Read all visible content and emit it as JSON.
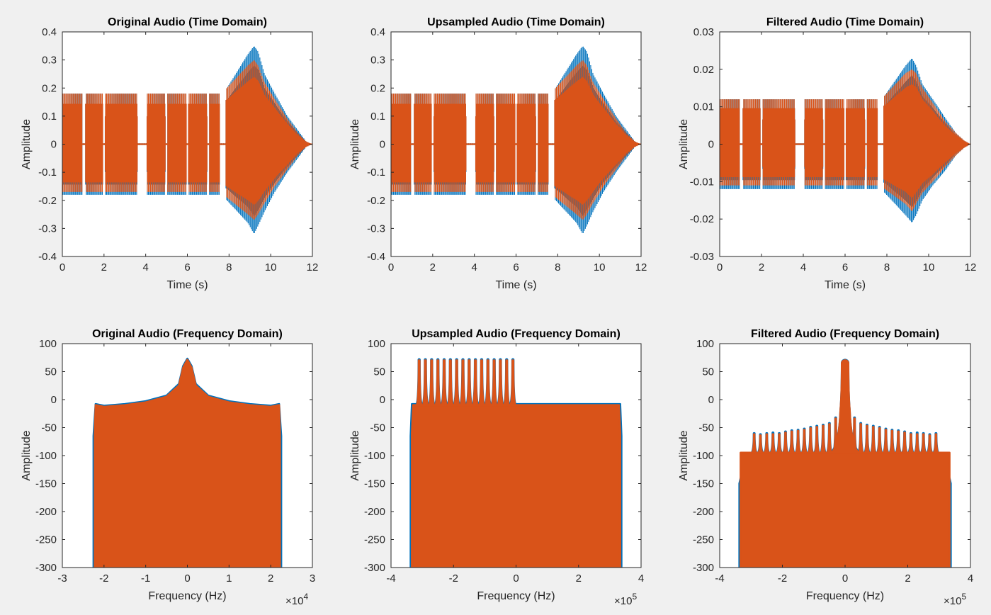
{
  "window": {
    "background": "#f0f0f0"
  },
  "colors": {
    "series1": "#0072bd",
    "series2": "#d95319",
    "axes": "#262626",
    "plot_bg": "#ffffff"
  },
  "chart_data": [
    {
      "id": "p1",
      "type": "line",
      "title": "Original Audio (Time Domain)",
      "xlabel": "Time (s)",
      "ylabel": "Amplitude",
      "xlim": [
        0,
        12
      ],
      "ylim": [
        -0.4,
        0.4
      ],
      "xticks": [
        0,
        2,
        4,
        6,
        8,
        10,
        12
      ],
      "xtick_labels": [
        "0",
        "2",
        "4",
        "6",
        "8",
        "10",
        "12"
      ],
      "yticks": [
        -0.4,
        -0.3,
        -0.2,
        -0.1,
        0,
        0.1,
        0.2,
        0.3,
        0.4
      ],
      "ytick_labels": [
        "-0.4",
        "-0.3",
        "-0.2",
        "-0.1",
        "0",
        "0.1",
        "0.2",
        "0.3",
        "0.4"
      ],
      "exponent": "",
      "series": [
        {
          "color": "#0072bd",
          "envelope": {
            "x": [
              0,
              7.6,
              7.9,
              8.4,
              8.9,
              9.2,
              9.4,
              9.7,
              10.2,
              10.8,
              11.3,
              11.7,
              12
            ],
            "upper": [
              0.18,
              0.18,
              0.2,
              0.26,
              0.32,
              0.35,
              0.33,
              0.25,
              0.18,
              0.1,
              0.05,
              0.01,
              0
            ],
            "lower": [
              -0.18,
              -0.18,
              -0.2,
              -0.24,
              -0.28,
              -0.32,
              -0.29,
              -0.24,
              -0.17,
              -0.1,
              -0.05,
              -0.01,
              0
            ]
          }
        },
        {
          "color": "#d95319",
          "envelope": {
            "x": [
              0,
              7.6,
              7.9,
              8.4,
              8.9,
              9.2,
              9.4,
              9.7,
              10.2,
              10.8,
              11.3,
              11.7,
              12
            ],
            "upper": [
              0.18,
              0.18,
              0.2,
              0.24,
              0.28,
              0.3,
              0.28,
              0.22,
              0.16,
              0.09,
              0.04,
              0.01,
              0
            ],
            "lower": [
              -0.17,
              -0.17,
              -0.19,
              -0.22,
              -0.25,
              -0.27,
              -0.25,
              -0.21,
              -0.15,
              -0.09,
              -0.04,
              -0.01,
              0
            ]
          }
        }
      ],
      "gaps": [
        [
          0.95,
          1.1
        ],
        [
          1.95,
          2.05
        ],
        [
          3.6,
          4.05
        ],
        [
          4.95,
          5.05
        ],
        [
          5.95,
          6.05
        ],
        [
          6.95,
          7.05
        ],
        [
          7.55,
          7.85
        ]
      ]
    },
    {
      "id": "p2",
      "type": "line",
      "title": "Upsampled Audio (Time Domain)",
      "xlabel": "Time (s)",
      "ylabel": "Amplitude",
      "xlim": [
        0,
        12
      ],
      "ylim": [
        -0.4,
        0.4
      ],
      "xticks": [
        0,
        2,
        4,
        6,
        8,
        10,
        12
      ],
      "xtick_labels": [
        "0",
        "2",
        "4",
        "6",
        "8",
        "10",
        "12"
      ],
      "yticks": [
        -0.4,
        -0.3,
        -0.2,
        -0.1,
        0,
        0.1,
        0.2,
        0.3,
        0.4
      ],
      "ytick_labels": [
        "-0.4",
        "-0.3",
        "-0.2",
        "-0.1",
        "0",
        "0.1",
        "0.2",
        "0.3",
        "0.4"
      ],
      "exponent": "",
      "series": [
        {
          "color": "#0072bd",
          "envelope": {
            "x": [
              0,
              7.6,
              7.9,
              8.4,
              8.9,
              9.2,
              9.4,
              9.7,
              10.2,
              10.8,
              11.3,
              11.7,
              12
            ],
            "upper": [
              0.18,
              0.18,
              0.2,
              0.26,
              0.32,
              0.35,
              0.33,
              0.25,
              0.18,
              0.1,
              0.05,
              0.01,
              0
            ],
            "lower": [
              -0.18,
              -0.18,
              -0.2,
              -0.24,
              -0.28,
              -0.32,
              -0.29,
              -0.24,
              -0.17,
              -0.1,
              -0.05,
              -0.01,
              0
            ]
          }
        },
        {
          "color": "#d95319",
          "envelope": {
            "x": [
              0,
              7.6,
              7.9,
              8.4,
              8.9,
              9.2,
              9.4,
              9.7,
              10.2,
              10.8,
              11.3,
              11.7,
              12
            ],
            "upper": [
              0.18,
              0.18,
              0.2,
              0.24,
              0.28,
              0.3,
              0.28,
              0.22,
              0.16,
              0.09,
              0.04,
              0.01,
              0
            ],
            "lower": [
              -0.17,
              -0.17,
              -0.19,
              -0.22,
              -0.25,
              -0.27,
              -0.25,
              -0.21,
              -0.15,
              -0.09,
              -0.04,
              -0.01,
              0
            ]
          }
        }
      ],
      "gaps": [
        [
          0.95,
          1.1
        ],
        [
          1.95,
          2.05
        ],
        [
          3.6,
          4.05
        ],
        [
          4.95,
          5.05
        ],
        [
          5.95,
          6.05
        ],
        [
          6.95,
          7.05
        ],
        [
          7.55,
          7.85
        ]
      ]
    },
    {
      "id": "p3",
      "type": "line",
      "title": "Filtered Audio (Time Domain)",
      "xlabel": "Time (s)",
      "ylabel": "Amplitude",
      "xlim": [
        0,
        12
      ],
      "ylim": [
        -0.03,
        0.03
      ],
      "xticks": [
        0,
        2,
        4,
        6,
        8,
        10,
        12
      ],
      "xtick_labels": [
        "0",
        "2",
        "4",
        "6",
        "8",
        "10",
        "12"
      ],
      "yticks": [
        -0.03,
        -0.02,
        -0.01,
        0,
        0.01,
        0.02,
        0.03
      ],
      "ytick_labels": [
        "-0.03",
        "-0.02",
        "-0.01",
        "0",
        "0.01",
        "0.02",
        "0.03"
      ],
      "exponent": "",
      "series": [
        {
          "color": "#0072bd",
          "envelope": {
            "x": [
              0,
              7.6,
              7.9,
              8.4,
              8.9,
              9.2,
              9.4,
              9.7,
              10.2,
              10.8,
              11.3,
              11.7,
              12
            ],
            "upper": [
              0.012,
              0.012,
              0.013,
              0.017,
              0.021,
              0.023,
              0.021,
              0.016,
              0.012,
              0.007,
              0.003,
              0.001,
              0
            ],
            "lower": [
              -0.012,
              -0.012,
              -0.013,
              -0.016,
              -0.019,
              -0.021,
              -0.019,
              -0.015,
              -0.011,
              -0.007,
              -0.003,
              -0.001,
              0
            ]
          }
        },
        {
          "color": "#d95319",
          "envelope": {
            "x": [
              0,
              7.6,
              7.9,
              8.4,
              8.9,
              9.2,
              9.4,
              9.7,
              10.2,
              10.8,
              11.3,
              11.7,
              12
            ],
            "upper": [
              0.012,
              0.012,
              0.013,
              0.016,
              0.019,
              0.02,
              0.019,
              0.015,
              0.011,
              0.006,
              0.003,
              0.001,
              0
            ],
            "lower": [
              -0.011,
              -0.011,
              -0.012,
              -0.014,
              -0.016,
              -0.018,
              -0.016,
              -0.013,
              -0.01,
              -0.006,
              -0.003,
              -0.001,
              0
            ]
          }
        }
      ],
      "gaps": [
        [
          0.95,
          1.1
        ],
        [
          1.95,
          2.05
        ],
        [
          3.6,
          4.05
        ],
        [
          4.95,
          5.05
        ],
        [
          5.95,
          6.05
        ],
        [
          6.95,
          7.05
        ],
        [
          7.55,
          7.85
        ]
      ]
    },
    {
      "id": "p4",
      "type": "area",
      "title": "Original Audio (Frequency Domain)",
      "xlabel": "Frequency (Hz)",
      "ylabel": "Amplitude",
      "xlim": [
        -3,
        3
      ],
      "ylim": [
        -300,
        100
      ],
      "xticks": [
        -3,
        -2,
        -1,
        0,
        1,
        2,
        3
      ],
      "xtick_labels": [
        "-3",
        "-2",
        "-1",
        "0",
        "1",
        "2",
        "3"
      ],
      "yticks": [
        -300,
        -250,
        -200,
        -150,
        -100,
        -50,
        0,
        50,
        100
      ],
      "ytick_labels": [
        "-300",
        "-250",
        "-200",
        "-150",
        "-100",
        "-50",
        "0",
        "50",
        "100"
      ],
      "exponent": "4",
      "series": [
        {
          "color": "#0072bd",
          "envelope": {
            "x": [
              -2.25,
              -2.2,
              -2.0,
              -1.5,
              -1.0,
              -0.5,
              -0.2,
              -0.1,
              0,
              0.1,
              0.2,
              0.5,
              1.0,
              1.5,
              2.0,
              2.2,
              2.25
            ],
            "upper": [
              -65,
              -8,
              -11,
              -8,
              -3,
              7,
              28,
              60,
              73,
              60,
              28,
              7,
              -3,
              -8,
              -11,
              -8,
              -65
            ],
            "lower": [
              -300,
              -300,
              -300,
              -300,
              -300,
              -300,
              -300,
              -300,
              -300,
              -300,
              -300,
              -300,
              -300,
              -300,
              -300,
              -300,
              -300
            ]
          }
        },
        {
          "color": "#d95319",
          "envelope": {
            "x": [
              -2.22,
              -2.2,
              -2.0,
              -1.5,
              -1.0,
              -0.5,
              -0.2,
              -0.1,
              0,
              0.1,
              0.2,
              0.5,
              1.0,
              1.5,
              2.0,
              2.2,
              2.22
            ],
            "upper": [
              -60,
              -10,
              -13,
              -10,
              -5,
              5,
              25,
              57,
              71,
              57,
              25,
              5,
              -5,
              -10,
              -13,
              -10,
              -60
            ],
            "lower": [
              -300,
              -300,
              -300,
              -300,
              -300,
              -300,
              -300,
              -300,
              -300,
              -300,
              -300,
              -300,
              -300,
              -300,
              -300,
              -300,
              -300
            ]
          }
        }
      ]
    },
    {
      "id": "p5",
      "type": "area",
      "title": "Upsampled Audio (Frequency Domain)",
      "xlabel": "Frequency (Hz)",
      "ylabel": "Amplitude",
      "xlim": [
        -4,
        4
      ],
      "ylim": [
        -300,
        100
      ],
      "xticks": [
        -4,
        -2,
        0,
        2,
        4
      ],
      "xtick_labels": [
        "-4",
        "-2",
        "0",
        "2",
        "4"
      ],
      "yticks": [
        -300,
        -250,
        -200,
        -150,
        -100,
        -50,
        0,
        50,
        100
      ],
      "ytick_labels": [
        "-300",
        "-250",
        "-200",
        "-150",
        "-100",
        "-50",
        "0",
        "50",
        "100"
      ],
      "exponent": "5",
      "series": [
        {
          "color": "#0072bd",
          "band": {
            "xmin": -3.37,
            "xmax": 3.37,
            "top": -8,
            "edge": -65,
            "bottom": -300
          },
          "peaks": {
            "start": -3.1,
            "step": 0.2,
            "count": 16,
            "height": 74,
            "width": 0.1
          }
        },
        {
          "color": "#d95319",
          "band": {
            "xmin": -3.33,
            "xmax": 3.33,
            "top": -10,
            "edge": -60,
            "bottom": -300
          },
          "peaks": {
            "start": -3.1,
            "step": 0.2,
            "count": 16,
            "height": 72,
            "width": 0.09
          }
        }
      ]
    },
    {
      "id": "p6",
      "type": "area",
      "title": "Filtered Audio (Frequency Domain)",
      "xlabel": "Frequency (Hz)",
      "ylabel": "Amplitude",
      "xlim": [
        -4,
        4
      ],
      "ylim": [
        -300,
        100
      ],
      "xticks": [
        -4,
        -2,
        0,
        2,
        4
      ],
      "xtick_labels": [
        "-4",
        "-2",
        "0",
        "2",
        "4"
      ],
      "yticks": [
        -300,
        -250,
        -200,
        -150,
        -100,
        -50,
        0,
        50,
        100
      ],
      "ytick_labels": [
        "-300",
        "-250",
        "-200",
        "-150",
        "-100",
        "-50",
        "0",
        "50",
        "100"
      ],
      "exponent": "5",
      "series": [
        {
          "color": "#0072bd",
          "band": {
            "xmin": -3.37,
            "xmax": 3.37,
            "top": -140,
            "edge": -150,
            "bottom": -300,
            "inner_top": -95
          },
          "peaks": {
            "x": [
              -3.1,
              -2.9,
              -2.7,
              -2.5,
              -2.3,
              -2.1,
              -1.9,
              -1.7,
              -1.5,
              -1.3,
              -1.1,
              -0.9,
              -0.7,
              -0.5,
              -0.3,
              0.3,
              0.5,
              0.7,
              0.9,
              1.1,
              1.3,
              1.5,
              1.7,
              1.9,
              2.1,
              2.3,
              2.5,
              2.7,
              2.9,
              3.1
            ],
            "height": [
              -95,
              -58,
              -60,
              -58,
              -57,
              -58,
              -55,
              -53,
              -52,
              -50,
              -47,
              -45,
              -43,
              -40,
              -30,
              -30,
              -40,
              -43,
              -45,
              -47,
              -50,
              -52,
              -53,
              -55,
              -58,
              -57,
              -58,
              -60,
              -58,
              -95
            ],
            "width": 0.09
          },
          "center_peak": 73
        },
        {
          "color": "#d95319",
          "band": {
            "xmin": -3.33,
            "xmax": 3.33,
            "top": -95,
            "edge": -95,
            "bottom": -300,
            "inner_top": -97
          },
          "peaks": {
            "x": [
              -3.1,
              -2.9,
              -2.7,
              -2.5,
              -2.3,
              -2.1,
              -1.9,
              -1.7,
              -1.5,
              -1.3,
              -1.1,
              -0.9,
              -0.7,
              -0.5,
              -0.3,
              0.3,
              0.5,
              0.7,
              0.9,
              1.1,
              1.3,
              1.5,
              1.7,
              1.9,
              2.1,
              2.3,
              2.5,
              2.7,
              2.9,
              3.1
            ],
            "height": [
              -95,
              -60,
              -62,
              -60,
              -60,
              -60,
              -57,
              -55,
              -54,
              -52,
              -49,
              -47,
              -45,
              -42,
              -32,
              -32,
              -42,
              -45,
              -47,
              -49,
              -52,
              -54,
              -55,
              -57,
              -60,
              -60,
              -60,
              -62,
              -60,
              -95
            ],
            "width": 0.08
          },
          "center_peak": 72
        }
      ]
    }
  ]
}
